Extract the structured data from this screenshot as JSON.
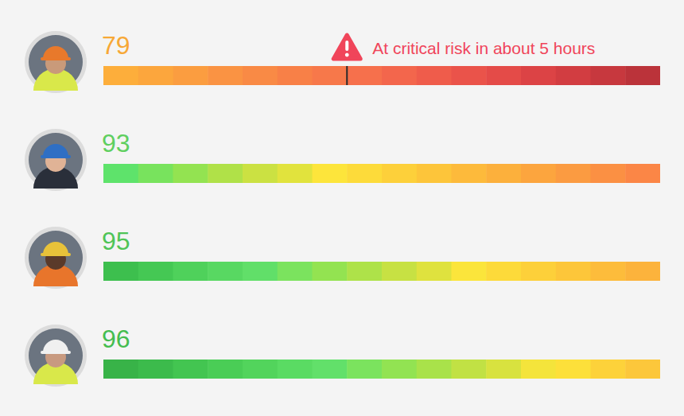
{
  "chart_data": {
    "type": "segmented_bar",
    "xlim": [
      0,
      16
    ],
    "grid": false,
    "tick_labels": false,
    "rows": [
      {
        "score": 79,
        "color": "#f7a836",
        "colors": [
          "#fdae3b",
          "#fca63d",
          "#fb9d40",
          "#fa9343",
          "#f98a45",
          "#f88047",
          "#f7784a",
          "#f6704c",
          "#f3664c",
          "#ef5c4b",
          "#ea534a",
          "#e44b48",
          "#dc4345",
          "#d23d41",
          "#c7383e",
          "#bb333a"
        ],
        "annotation": {
          "text": "At critical risk in about 5 hours",
          "at": 7
        }
      },
      {
        "score": 93,
        "color": "#5fcf5f",
        "colors": [
          "#5ee36b",
          "#78e35d",
          "#93e351",
          "#b0e148",
          "#cbe142",
          "#e1e33d",
          "#fde53b",
          "#fddb3a",
          "#fdd03a",
          "#fdc53a",
          "#fdba3b",
          "#fcb03c",
          "#fca53e",
          "#fb9b41",
          "#fb9043",
          "#fb8646"
        ]
      },
      {
        "score": 95,
        "color": "#4fc457",
        "colors": [
          "#3dbf4e",
          "#45c854",
          "#4fd15b",
          "#58d862",
          "#61df69",
          "#7be35e",
          "#93e351",
          "#aee249",
          "#c7e143",
          "#dfe23e",
          "#fbe53b",
          "#fdda3a",
          "#fdd03a",
          "#fdc63a",
          "#fdbc3b",
          "#fcb33c"
        ]
      },
      {
        "score": 96,
        "color": "#45bd50",
        "colors": [
          "#38b348",
          "#3cbb4c",
          "#43c551",
          "#4acd56",
          "#52d45c",
          "#5adb63",
          "#62e06a",
          "#7be35e",
          "#92e352",
          "#a9e24a",
          "#c1e144",
          "#d8e23f",
          "#f4e43b",
          "#fde03a",
          "#fdd23a",
          "#fcc73b"
        ]
      }
    ]
  }
}
